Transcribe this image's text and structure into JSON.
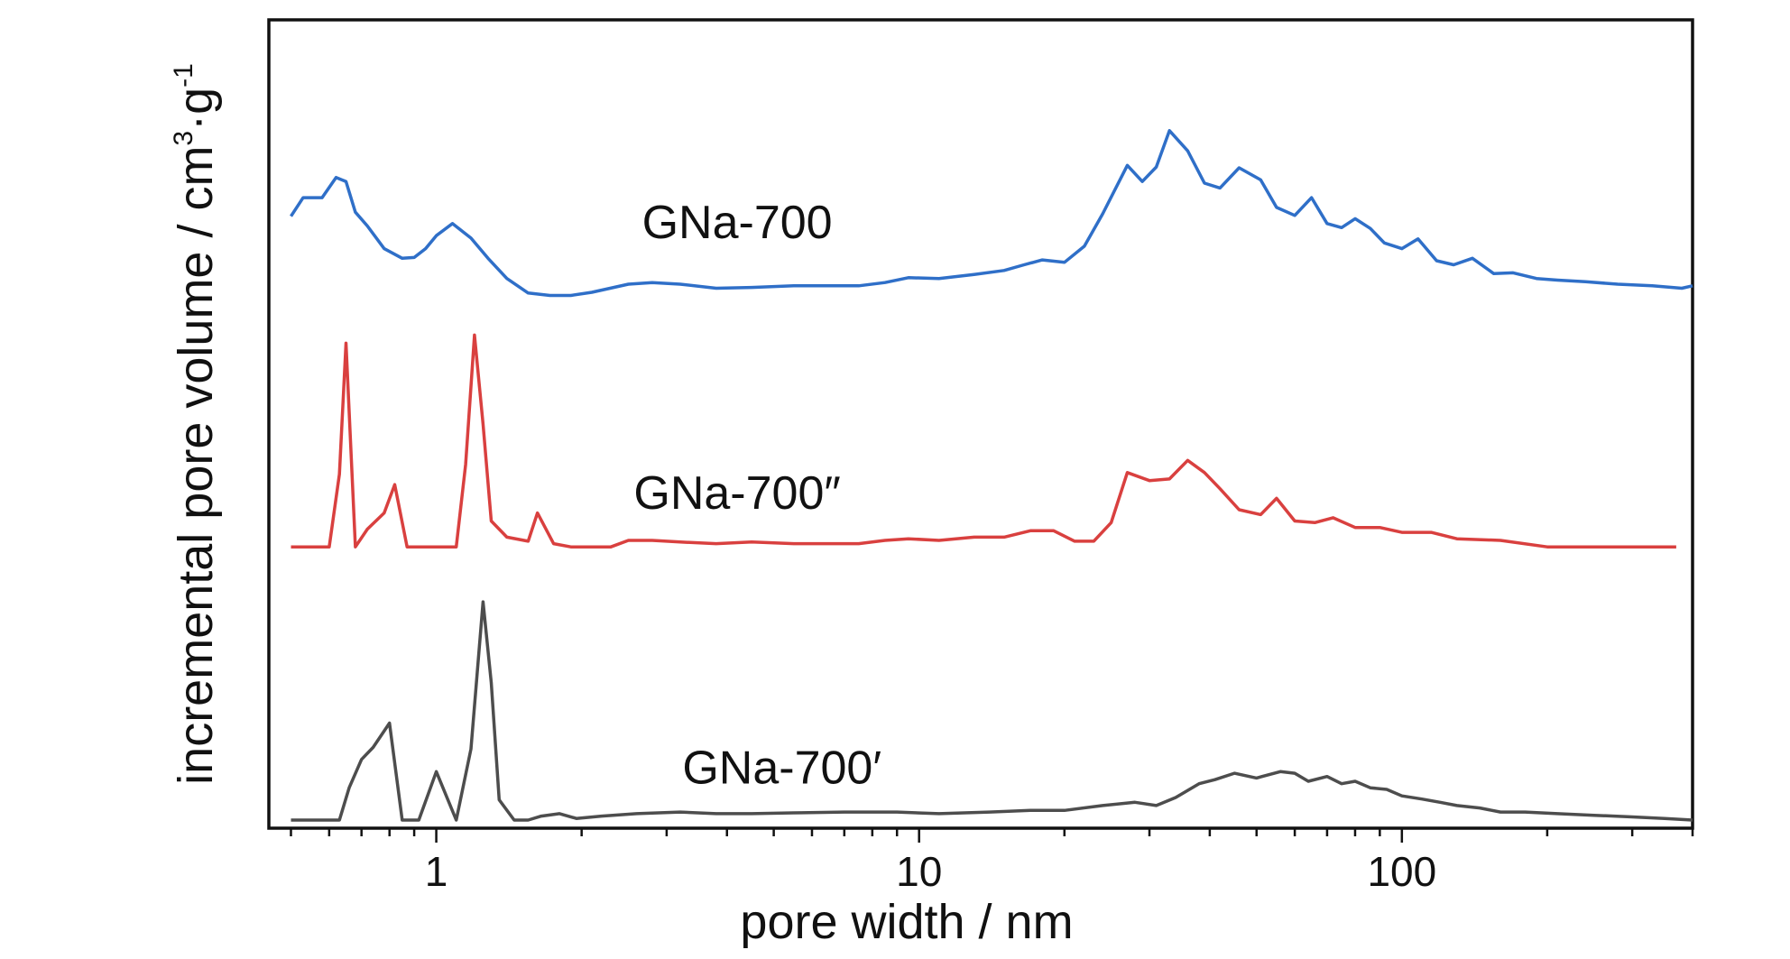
{
  "chart_data": {
    "type": "line",
    "xlabel": "pore width / nm",
    "ylabel_text": "incremental pore volume / cm",
    "ylabel_sup1": "3",
    "ylabel_mid": "·g",
    "ylabel_sup2": "-1",
    "x_scale": "log",
    "xlim": [
      0.45,
      400
    ],
    "ylim": [
      0,
      1
    ],
    "grid": false,
    "legend": "none",
    "x_ticks": [
      1,
      10,
      100
    ],
    "x_tick_labels": [
      "1",
      "10",
      "100"
    ],
    "series": [
      {
        "name": "GNa-700",
        "color": "#2f6fc8",
        "label_at": [
          4.2,
          0.73
        ],
        "x": [
          0.5,
          0.53,
          0.58,
          0.62,
          0.65,
          0.68,
          0.72,
          0.78,
          0.85,
          0.9,
          0.95,
          1.0,
          1.08,
          1.18,
          1.28,
          1.4,
          1.55,
          1.72,
          1.9,
          2.1,
          2.5,
          2.8,
          3.2,
          3.8,
          4.5,
          5.5,
          6.5,
          7.5,
          8.5,
          9.5,
          11,
          13,
          15,
          16.5,
          18,
          20,
          22,
          24,
          27,
          29,
          31,
          33,
          36,
          39,
          42,
          46,
          51,
          55,
          60,
          65,
          70,
          75,
          80,
          86,
          92,
          100,
          108,
          118,
          128,
          140,
          155,
          170,
          190,
          210,
          240,
          280,
          330,
          380,
          400
        ],
        "y": [
          0.757,
          0.78,
          0.78,
          0.805,
          0.8,
          0.762,
          0.745,
          0.717,
          0.705,
          0.706,
          0.717,
          0.733,
          0.748,
          0.73,
          0.705,
          0.68,
          0.662,
          0.659,
          0.659,
          0.663,
          0.673,
          0.675,
          0.673,
          0.668,
          0.669,
          0.671,
          0.671,
          0.671,
          0.675,
          0.681,
          0.68,
          0.685,
          0.69,
          0.697,
          0.703,
          0.7,
          0.72,
          0.76,
          0.82,
          0.8,
          0.818,
          0.863,
          0.838,
          0.798,
          0.792,
          0.817,
          0.802,
          0.768,
          0.758,
          0.78,
          0.748,
          0.743,
          0.754,
          0.742,
          0.724,
          0.717,
          0.729,
          0.702,
          0.697,
          0.705,
          0.686,
          0.687,
          0.68,
          0.678,
          0.676,
          0.673,
          0.671,
          0.668,
          0.671
        ]
      },
      {
        "name": "GNa-700″",
        "color": "#d9403f",
        "label_at": [
          4.2,
          0.395
        ],
        "x": [
          0.5,
          0.6,
          0.63,
          0.65,
          0.68,
          0.72,
          0.78,
          0.82,
          0.87,
          1.0,
          1.1,
          1.15,
          1.2,
          1.25,
          1.3,
          1.4,
          1.55,
          1.62,
          1.75,
          1.9,
          2.3,
          2.5,
          2.8,
          3.2,
          3.8,
          4.5,
          5.5,
          6.5,
          7.5,
          8.5,
          9.5,
          11,
          13,
          15,
          17,
          19,
          21,
          23,
          25,
          27,
          30,
          33,
          36,
          39,
          42,
          46,
          51,
          55,
          60,
          66,
          72,
          80,
          90,
          100,
          115,
          130,
          160,
          200,
          280,
          370
        ],
        "y": [
          0.348,
          0.348,
          0.438,
          0.6,
          0.348,
          0.37,
          0.39,
          0.425,
          0.348,
          0.348,
          0.348,
          0.45,
          0.61,
          0.5,
          0.38,
          0.36,
          0.355,
          0.39,
          0.352,
          0.348,
          0.348,
          0.356,
          0.356,
          0.354,
          0.352,
          0.354,
          0.352,
          0.352,
          0.352,
          0.356,
          0.358,
          0.356,
          0.36,
          0.36,
          0.368,
          0.368,
          0.355,
          0.355,
          0.378,
          0.44,
          0.43,
          0.432,
          0.455,
          0.44,
          0.42,
          0.394,
          0.388,
          0.408,
          0.38,
          0.378,
          0.384,
          0.372,
          0.372,
          0.366,
          0.366,
          0.358,
          0.356,
          0.348,
          0.348,
          0.348
        ]
      },
      {
        "name": "GNa-700′",
        "color": "#4d4d4d",
        "label_at": [
          5.2,
          0.055
        ],
        "x": [
          0.5,
          0.6,
          0.63,
          0.66,
          0.7,
          0.74,
          0.8,
          0.85,
          0.92,
          1.0,
          1.1,
          1.18,
          1.25,
          1.3,
          1.35,
          1.45,
          1.55,
          1.65,
          1.8,
          1.95,
          2.2,
          2.6,
          3.2,
          3.8,
          4.5,
          5.5,
          7,
          9,
          11,
          14,
          17,
          20,
          24,
          28,
          31,
          34,
          38,
          41,
          45,
          50,
          56,
          60,
          64,
          70,
          75,
          80,
          86,
          93,
          100,
          110,
          120,
          130,
          145,
          160,
          180,
          210,
          250,
          300,
          350,
          400
        ],
        "y": [
          0.01,
          0.01,
          0.01,
          0.05,
          0.085,
          0.1,
          0.13,
          0.01,
          0.01,
          0.07,
          0.01,
          0.098,
          0.28,
          0.18,
          0.035,
          0.01,
          0.01,
          0.015,
          0.018,
          0.012,
          0.015,
          0.018,
          0.02,
          0.018,
          0.018,
          0.019,
          0.02,
          0.02,
          0.018,
          0.02,
          0.022,
          0.022,
          0.028,
          0.032,
          0.028,
          0.038,
          0.055,
          0.06,
          0.068,
          0.062,
          0.07,
          0.068,
          0.058,
          0.064,
          0.055,
          0.058,
          0.05,
          0.048,
          0.04,
          0.036,
          0.032,
          0.028,
          0.025,
          0.02,
          0.02,
          0.018,
          0.016,
          0.014,
          0.012,
          0.01
        ]
      }
    ]
  }
}
